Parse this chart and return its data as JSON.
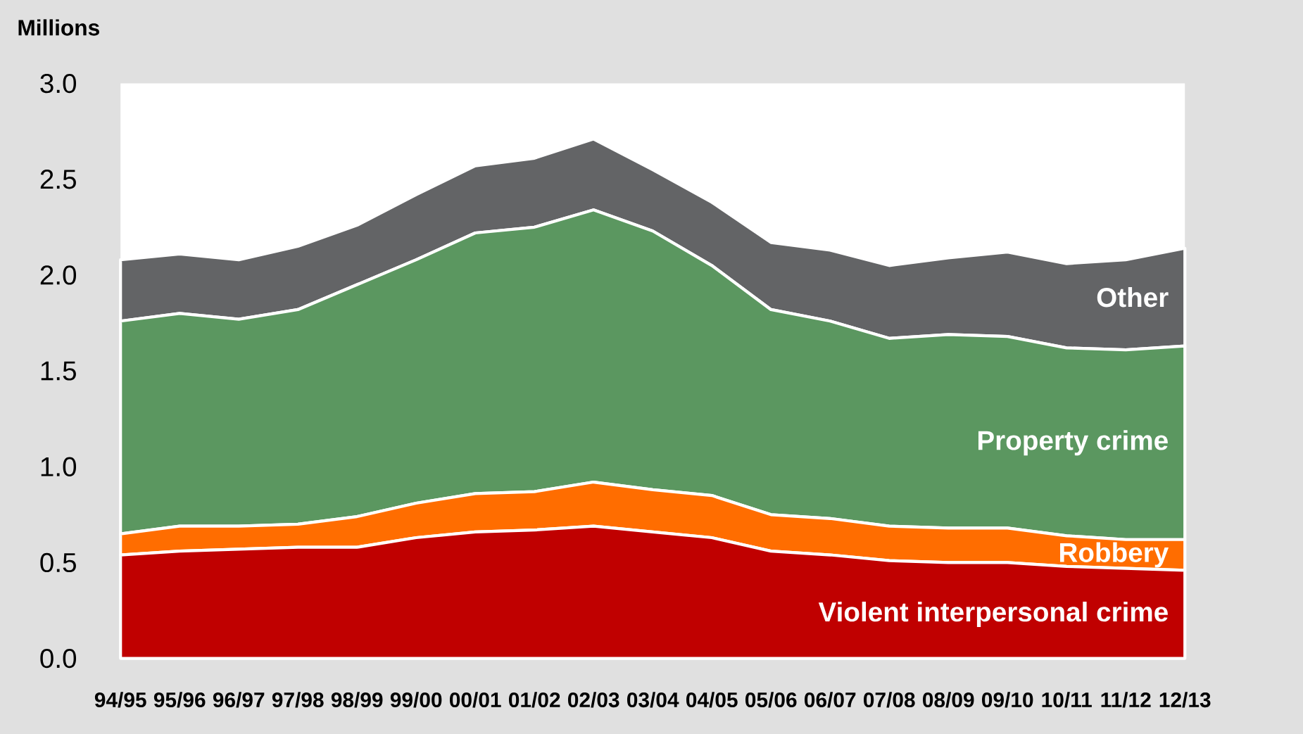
{
  "chart_data": {
    "type": "area",
    "stacked": true,
    "ylabel": "Millions",
    "categories": [
      "94/95",
      "95/96",
      "96/97",
      "97/98",
      "98/99",
      "99/00",
      "00/01",
      "01/02",
      "02/03",
      "03/04",
      "04/05",
      "05/06",
      "06/07",
      "07/08",
      "08/09",
      "09/10",
      "10/11",
      "11/12",
      "12/13"
    ],
    "series": [
      {
        "name": "Violent interpersonal crime",
        "color": "#c00000",
        "values": [
          0.54,
          0.56,
          0.57,
          0.58,
          0.58,
          0.63,
          0.66,
          0.67,
          0.69,
          0.66,
          0.63,
          0.56,
          0.54,
          0.51,
          0.5,
          0.5,
          0.48,
          0.47,
          0.46
        ]
      },
      {
        "name": "Robbery",
        "color": "#ff6d00",
        "values": [
          0.11,
          0.13,
          0.12,
          0.12,
          0.16,
          0.18,
          0.2,
          0.2,
          0.23,
          0.22,
          0.22,
          0.19,
          0.19,
          0.18,
          0.18,
          0.18,
          0.16,
          0.15,
          0.16
        ]
      },
      {
        "name": "Property crime",
        "color": "#5b9760",
        "values": [
          1.11,
          1.11,
          1.08,
          1.12,
          1.21,
          1.27,
          1.36,
          1.38,
          1.42,
          1.35,
          1.2,
          1.07,
          1.03,
          0.98,
          1.01,
          1.0,
          0.98,
          0.99,
          1.01
        ]
      },
      {
        "name": "Other",
        "color": "#636466",
        "values": [
          0.32,
          0.31,
          0.31,
          0.33,
          0.31,
          0.34,
          0.35,
          0.36,
          0.37,
          0.32,
          0.33,
          0.35,
          0.37,
          0.38,
          0.4,
          0.44,
          0.44,
          0.47,
          0.51
        ]
      }
    ],
    "ylim": [
      0,
      3.0
    ],
    "yticks": [
      {
        "value": 0,
        "label": "0.0"
      },
      {
        "value": 0.5,
        "label": "0.5"
      },
      {
        "value": 1.0,
        "label": "1.0"
      },
      {
        "value": 1.5,
        "label": "1.5"
      },
      {
        "value": 2.0,
        "label": "2.0"
      },
      {
        "value": 2.5,
        "label": "2.5"
      },
      {
        "value": 3.0,
        "label": "3.0"
      }
    ]
  }
}
